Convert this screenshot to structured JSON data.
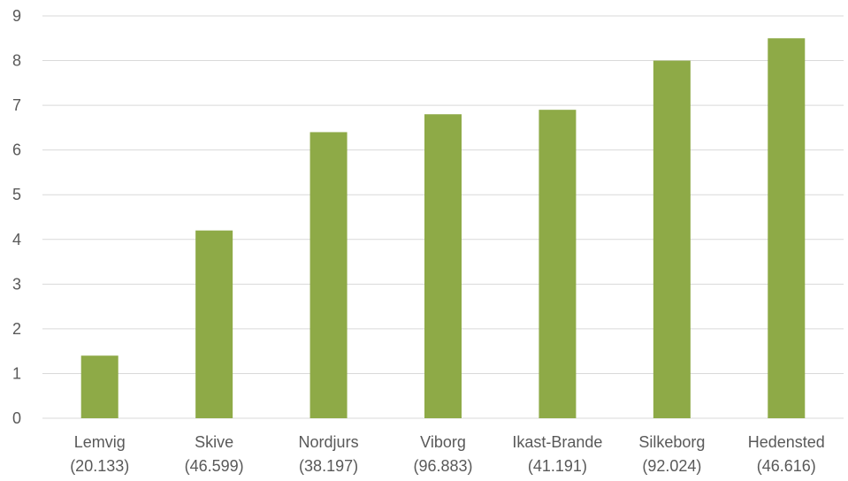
{
  "chart_data": {
    "type": "bar",
    "title": "",
    "xlabel": "",
    "ylabel": "",
    "categories": [
      [
        "Lemvig",
        "(20.133)"
      ],
      [
        "Skive",
        "(46.599)"
      ],
      [
        "Nordjurs",
        "(38.197)"
      ],
      [
        "Viborg",
        "(96.883)"
      ],
      [
        "Ikast-Brande",
        "(41.191)"
      ],
      [
        "Silkeborg",
        "(92.024)"
      ],
      [
        "Hedensted",
        "(46.616)"
      ]
    ],
    "values": [
      1.4,
      4.2,
      6.4,
      6.8,
      6.9,
      8.0,
      8.5
    ],
    "ylim": [
      0,
      9
    ],
    "yticks": [
      "0",
      "1",
      "2",
      "3",
      "4",
      "5",
      "6",
      "7",
      "8",
      "9"
    ],
    "grid": true,
    "legend": "none",
    "bar_color": "#8eaa47"
  }
}
